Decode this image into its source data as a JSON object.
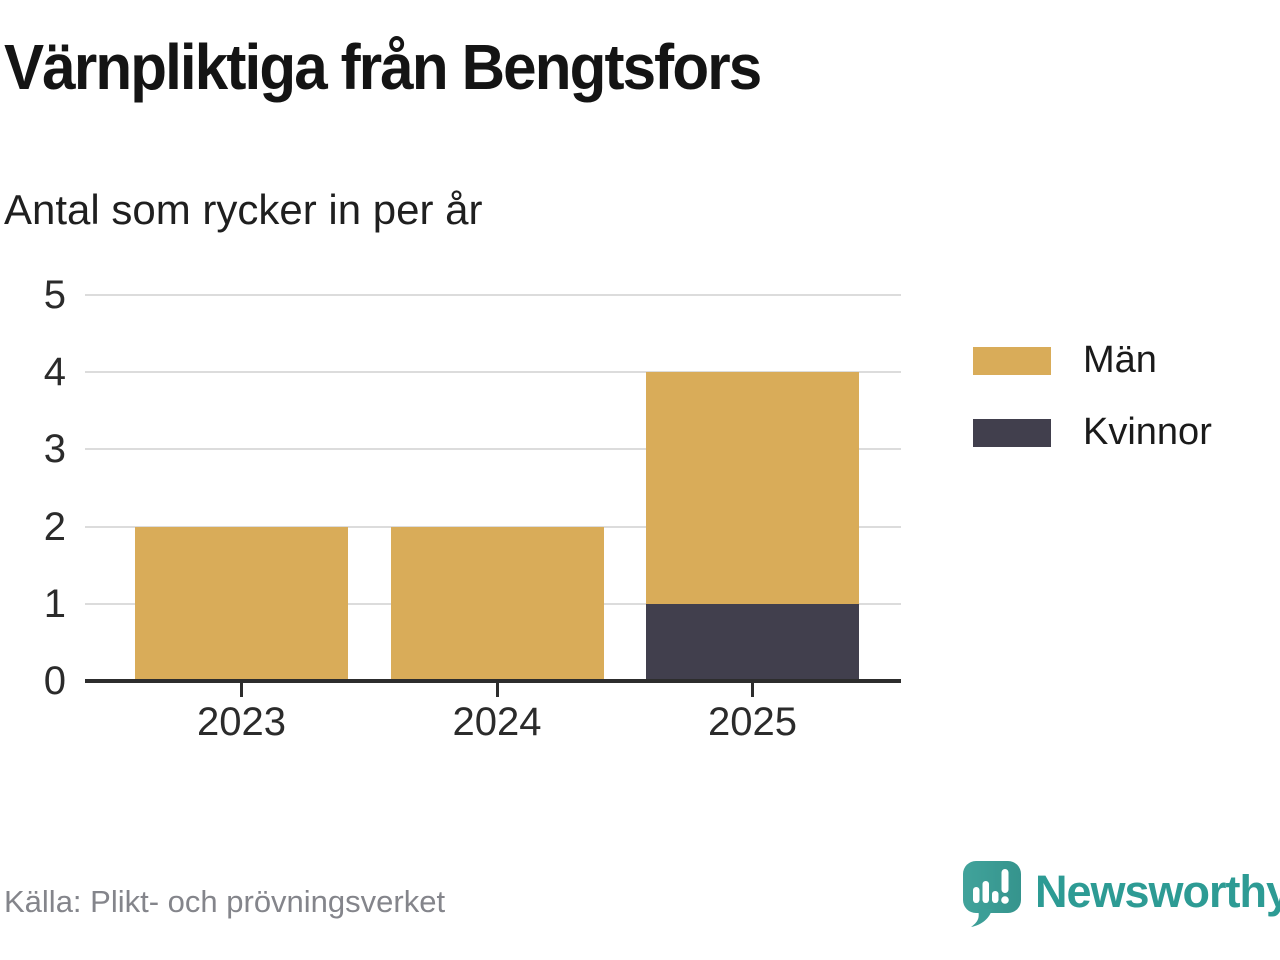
{
  "header": {
    "title": "Värnpliktiga från Bengtsfors",
    "subtitle": "Antal som rycker in per år"
  },
  "chart_data": {
    "type": "bar",
    "stacked": true,
    "title": "Värnpliktiga från Bengtsfors",
    "subtitle": "Antal som rycker in per år",
    "categories": [
      "2023",
      "2024",
      "2025"
    ],
    "series": [
      {
        "name": "Män",
        "color": "#D9AC59",
        "values": [
          2,
          2,
          3
        ]
      },
      {
        "name": "Kvinnor",
        "color": "#413F4D",
        "values": [
          0,
          0,
          1
        ]
      }
    ],
    "stack_order_bottom_up": [
      "Kvinnor",
      "Män"
    ],
    "totals": [
      2,
      2,
      4
    ],
    "xlabel": "",
    "ylabel": "Antal som rycker in per år",
    "ylim": [
      0,
      5
    ],
    "yticks": [
      0,
      1,
      2,
      3,
      4,
      5
    ],
    "grid": true,
    "legend_position": "right",
    "gridline_color": "#dcdcdc",
    "axis_color": "#2d2d2d"
  },
  "legend": {
    "items": [
      {
        "label": "Män",
        "color": "#D9AC59"
      },
      {
        "label": "Kvinnor",
        "color": "#413F4D"
      }
    ]
  },
  "footer": {
    "source": "Källa: Plikt- och prövningsverket",
    "brand": "Newsworthy",
    "brand_color": "#2D9B94",
    "brand_icon": "speech-bubble-bar-chart-icon",
    "brand_icon_color": "#3C9E97"
  }
}
